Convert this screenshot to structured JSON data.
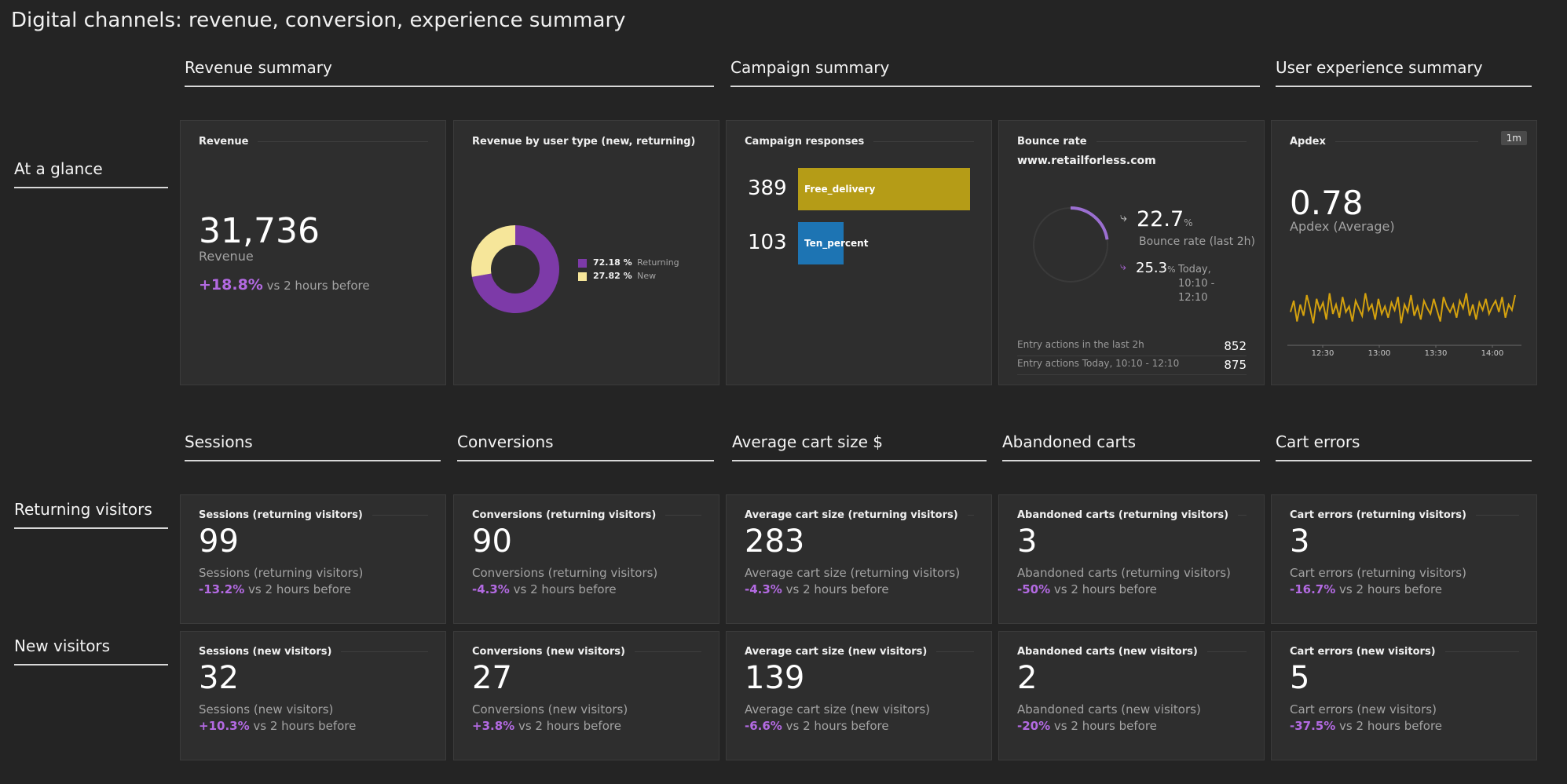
{
  "title": "Digital channels: revenue, conversion, experience summary",
  "section_headers": {
    "revenue_summary": "Revenue summary",
    "campaign_summary": "Campaign summary",
    "ux_summary": "User experience summary",
    "sessions": "Sessions",
    "conversions": "Conversions",
    "avg_cart": "Average cart size $",
    "abandoned": "Abandoned carts",
    "cart_errors": "Cart errors"
  },
  "row_labels": {
    "glance": "At a glance",
    "returning": "Returning visitors",
    "new": "New visitors"
  },
  "revenue_tile": {
    "title": "Revenue",
    "value": "31,736",
    "label": "Revenue",
    "change": "+18.8%",
    "change_suffix": "vs 2 hours before"
  },
  "user_type_tile": {
    "title": "Revenue by user type (new, returning)",
    "legend": [
      {
        "pct": "72.18 %",
        "name": "Returning",
        "color": "#7d3aa8",
        "value": 72.18
      },
      {
        "pct": "27.82 %",
        "name": "New",
        "color": "#f6e69a",
        "value": 27.82
      }
    ]
  },
  "campaign_tile": {
    "title": "Campaign responses",
    "bars": [
      {
        "count": "389",
        "name": "Free_delivery",
        "value": 389,
        "color": "#b59c17"
      },
      {
        "count": "103",
        "name": "Ten_percent",
        "value": 103,
        "color": "#1d74b3"
      }
    ]
  },
  "bounce_tile": {
    "title": "Bounce rate",
    "site": "www.retailforless.com",
    "rate": "22.7",
    "rate_unit": "%",
    "rate_label": "Bounce rate (last 2h)",
    "rate_value": 22.7,
    "today": "25.3",
    "today_unit": "%",
    "today_label_1": "Today,",
    "today_label_2": "10:10 -",
    "today_label_3": "12:10",
    "today_value": 25.3,
    "entries": [
      {
        "label": "Entry actions in the last 2h",
        "value": "852"
      },
      {
        "label": "Entry actions Today, 10:10 - 12:10",
        "value": "875"
      }
    ],
    "colors": {
      "arc": "#9b6fd1",
      "ring": "#3a3a3a"
    }
  },
  "apdex_tile": {
    "title": "Apdex",
    "badge": "1m",
    "value": "0.78",
    "label": "Apdex (Average)",
    "series_color": "#d4a10e",
    "x_ticks": [
      "12:30",
      "13:00",
      "13:30",
      "14:00"
    ],
    "series": [
      0.76,
      0.82,
      0.71,
      0.8,
      0.74,
      0.85,
      0.78,
      0.7,
      0.83,
      0.77,
      0.81,
      0.72,
      0.86,
      0.75,
      0.8,
      0.73,
      0.84,
      0.76,
      0.79,
      0.71,
      0.82,
      0.78,
      0.74,
      0.86,
      0.77,
      0.8,
      0.72,
      0.83,
      0.75,
      0.79,
      0.73,
      0.81,
      0.77,
      0.84,
      0.7,
      0.8,
      0.76,
      0.85,
      0.74,
      0.79,
      0.72,
      0.82,
      0.78,
      0.75,
      0.83,
      0.77,
      0.71,
      0.84,
      0.79,
      0.76,
      0.8,
      0.73,
      0.82,
      0.78,
      0.86,
      0.74,
      0.8,
      0.72,
      0.81,
      0.77,
      0.83,
      0.75,
      0.79,
      0.82,
      0.76,
      0.84,
      0.73,
      0.8,
      0.77,
      0.85
    ]
  },
  "metrics": {
    "sessions_ret": {
      "title": "Sessions (returning visitors)",
      "value": "99",
      "label": "Sessions (returning visitors)",
      "change": "-13.2%",
      "suffix": "vs 2 hours before"
    },
    "conv_ret": {
      "title": "Conversions (returning visitors)",
      "value": "90",
      "label": "Conversions (returning visitors)",
      "change": "-4.3%",
      "suffix": "vs 2 hours before"
    },
    "cart_ret": {
      "title": "Average cart size (returning visitors)",
      "value": "283",
      "label": "Average cart size (returning visitors)",
      "change": "-4.3%",
      "suffix": "vs 2 hours before"
    },
    "aband_ret": {
      "title": "Abandoned carts (returning visitors)",
      "value": "3",
      "label": "Abandoned carts (returning visitors)",
      "change": "-50%",
      "suffix": "vs 2 hours before"
    },
    "err_ret": {
      "title": "Cart errors (returning visitors)",
      "value": "3",
      "label": "Cart errors (returning visitors)",
      "change": "-16.7%",
      "suffix": "vs 2 hours before"
    },
    "sessions_new": {
      "title": "Sessions (new visitors)",
      "value": "32",
      "label": "Sessions (new visitors)",
      "change": "+10.3%",
      "suffix": "vs 2 hours before"
    },
    "conv_new": {
      "title": "Conversions (new visitors)",
      "value": "27",
      "label": "Conversions (new visitors)",
      "change": "+3.8%",
      "suffix": "vs 2 hours before"
    },
    "cart_new": {
      "title": "Average cart size (new visitors)",
      "value": "139",
      "label": "Average cart size (new visitors)",
      "change": "-6.6%",
      "suffix": "vs 2 hours before"
    },
    "aband_new": {
      "title": "Abandoned carts (new visitors)",
      "value": "2",
      "label": "Abandoned carts (new visitors)",
      "change": "-20%",
      "suffix": "vs 2 hours before"
    },
    "err_new": {
      "title": "Cart errors (new visitors)",
      "value": "5",
      "label": "Cart errors (new visitors)",
      "change": "-37.5%",
      "suffix": "vs 2 hours before"
    }
  }
}
